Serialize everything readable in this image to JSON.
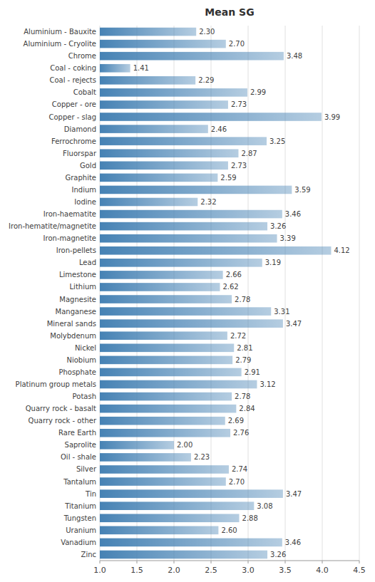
{
  "chart_data": {
    "type": "bar",
    "orientation": "horizontal",
    "title": "Mean SG",
    "categories": [
      "Aluminium - Bauxite",
      "Aluminium - Cryolite",
      "Chrome",
      "Coal - coking",
      "Coal - rejects",
      "Cobalt",
      "Copper - ore",
      "Copper - slag",
      "Diamond",
      "Ferrochrome",
      "Fluorspar",
      "Gold",
      "Graphite",
      "Indium",
      "Iodine",
      "Iron-haematite",
      "Iron-hematite/magnetite",
      "Iron-magnetite",
      "Iron-pellets",
      "Lead",
      "Limestone",
      "Lithium",
      "Magnesite",
      "Manganese",
      "Mineral sands",
      "Molybdenum",
      "Nickel",
      "Niobium",
      "Phosphate",
      "Platinum group metals",
      "Potash",
      "Quarry rock - basalt",
      "Quarry rock - other",
      "Rare Earth",
      "Saprolite",
      "Oil - shale",
      "Silver",
      "Tantalum",
      "Tin",
      "Titanium",
      "Tungsten",
      "Uranium",
      "Vanadium",
      "Zinc"
    ],
    "values": [
      2.3,
      2.7,
      3.48,
      1.41,
      2.29,
      2.99,
      2.73,
      3.99,
      2.46,
      3.25,
      2.87,
      2.73,
      2.59,
      3.59,
      2.32,
      3.46,
      3.26,
      3.39,
      4.12,
      3.19,
      2.66,
      2.62,
      2.78,
      3.31,
      3.47,
      2.72,
      2.81,
      2.79,
      2.91,
      3.12,
      2.78,
      2.84,
      2.69,
      2.76,
      2.0,
      2.23,
      2.74,
      2.7,
      3.47,
      3.08,
      2.88,
      2.6,
      3.46,
      3.26
    ],
    "value_labels": [
      "2.30",
      "2.70",
      "3.48",
      "1.41",
      "2.29",
      "2.99",
      "2.73",
      "3.99",
      "2.46",
      "3.25",
      "2.87",
      "2.73",
      "2.59",
      "3.59",
      "2.32",
      "3.46",
      "3.26",
      "3.39",
      "4.12",
      "3.19",
      "2.66",
      "2.62",
      "2.78",
      "3.31",
      "3.47",
      "2.72",
      "2.81",
      "2.79",
      "2.91",
      "3.12",
      "2.78",
      "2.84",
      "2.69",
      "2.76",
      "2.00",
      "2.23",
      "2.74",
      "2.70",
      "3.47",
      "3.08",
      "2.88",
      "2.60",
      "3.46",
      "3.26"
    ],
    "data_labels": true,
    "color": "#4682b4",
    "xlim": [
      1.0,
      4.5
    ],
    "xticks": [
      {
        "value": 1.0,
        "label": "1.0"
      },
      1.5,
      {
        "value": 2.0,
        "label": "2.0"
      },
      2.5,
      {
        "value": 3.0,
        "label": "3.0"
      },
      3.5,
      {
        "value": 4.0,
        "label": "4.0"
      },
      4.5
    ],
    "grid": true
  }
}
